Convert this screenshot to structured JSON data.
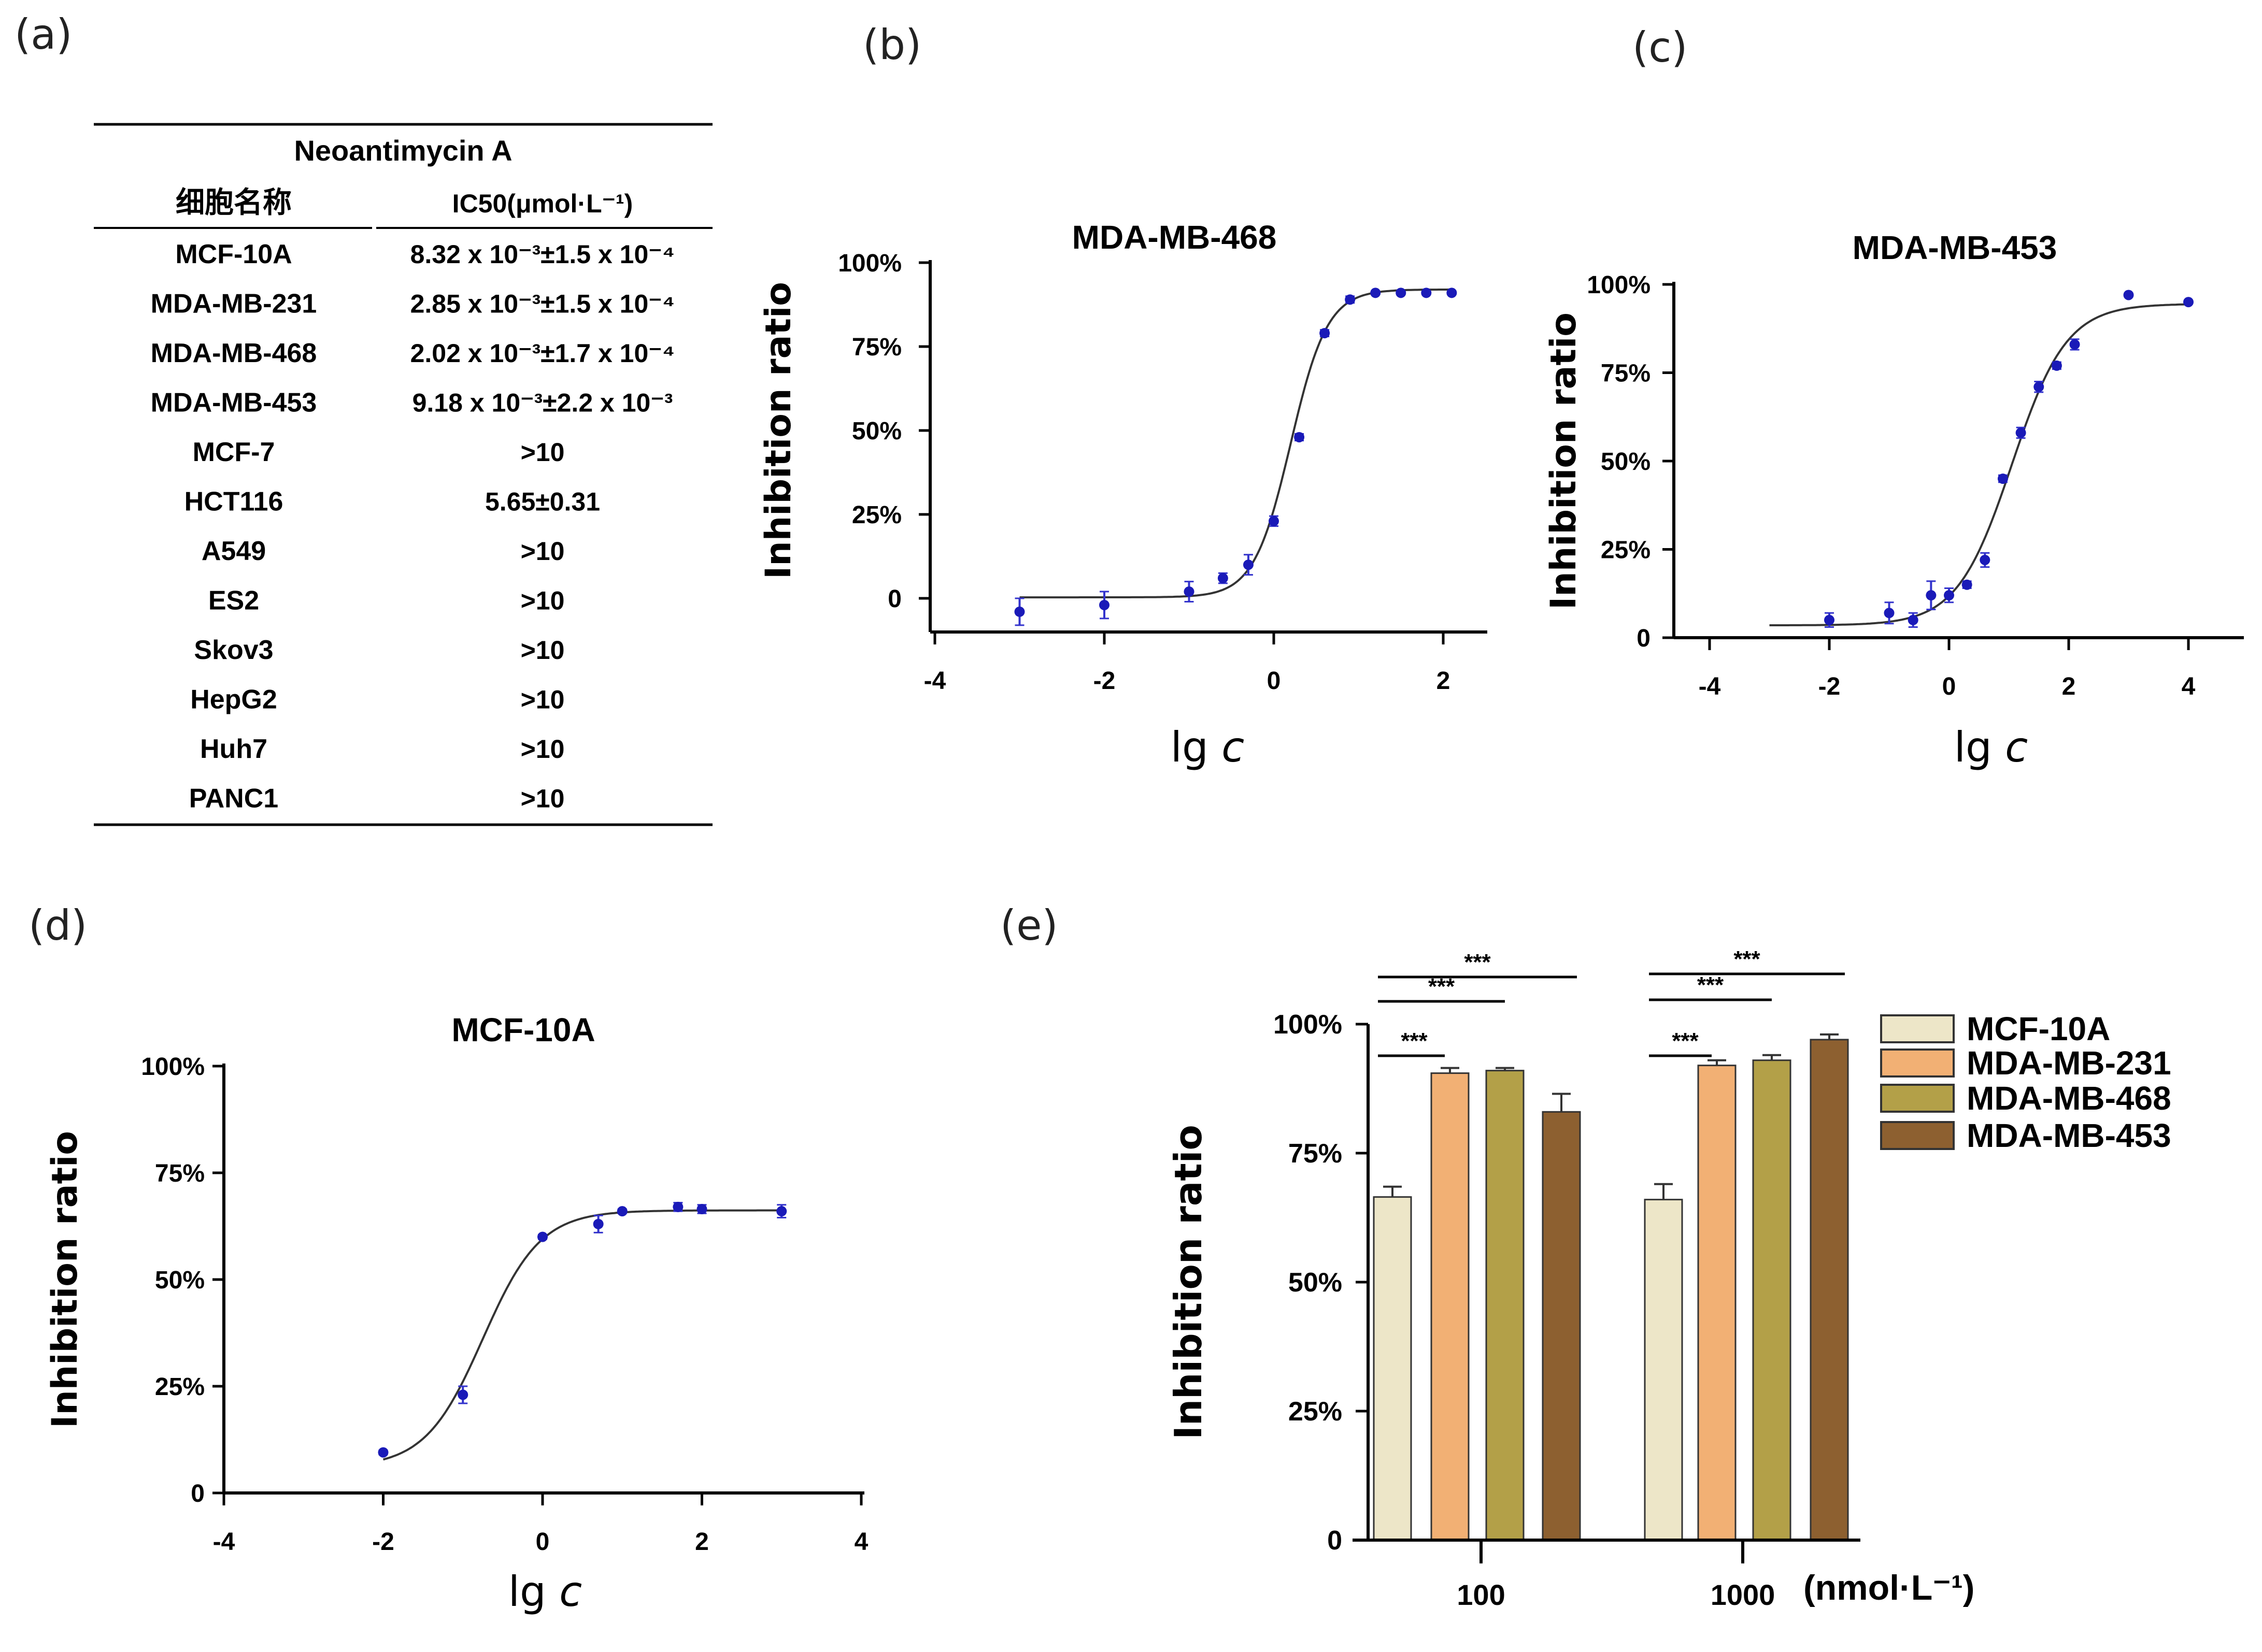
{
  "panels": {
    "a": {
      "label": "(a)"
    },
    "b": {
      "label": "(b)"
    },
    "c": {
      "label": "(c)"
    },
    "d": {
      "label": "(d)"
    },
    "e": {
      "label": "(e)"
    }
  },
  "table": {
    "title": "Neoantimycin A",
    "columns": [
      "细胞名称",
      "IC50(μmol·L⁻¹)"
    ],
    "rows": [
      {
        "cell": "MCF-10A",
        "ic50": "8.32 x 10⁻³±1.5 x 10⁻⁴"
      },
      {
        "cell": "MDA-MB-231",
        "ic50": "2.85 x 10⁻³±1.5 x 10⁻⁴"
      },
      {
        "cell": "MDA-MB-468",
        "ic50": "2.02 x 10⁻³±1.7 x 10⁻⁴"
      },
      {
        "cell": "MDA-MB-453",
        "ic50": "9.18 x 10⁻³±2.2 x 10⁻³"
      },
      {
        "cell": "MCF-7",
        "ic50": ">10"
      },
      {
        "cell": "HCT116",
        "ic50": "5.65±0.31"
      },
      {
        "cell": "A549",
        "ic50": ">10"
      },
      {
        "cell": "ES2",
        "ic50": ">10"
      },
      {
        "cell": "Skov3",
        "ic50": ">10"
      },
      {
        "cell": "HepG2",
        "ic50": ">10"
      },
      {
        "cell": "Huh7",
        "ic50": ">10"
      },
      {
        "cell": "PANC1",
        "ic50": ">10"
      }
    ]
  },
  "colors": {
    "point": "#1a1ab8",
    "curve": "#333333",
    "axis": "#000000"
  },
  "chart_data": [
    {
      "panel": "b",
      "type": "scatter",
      "title": "MDA-MB-468",
      "xlabel": "lg c",
      "ylabel": "Inhibition ratio",
      "xlim": [
        -4,
        2.5
      ],
      "ylim": [
        -10,
        100
      ],
      "xticks": [
        -4,
        -2,
        0,
        2
      ],
      "yticks": [
        0,
        25,
        50,
        75,
        100
      ],
      "ytick_labels": [
        "0",
        "25%",
        "50%",
        "75%",
        "100%"
      ],
      "points": [
        {
          "x": -3,
          "y": -4,
          "err": 4
        },
        {
          "x": -2,
          "y": -2,
          "err": 4
        },
        {
          "x": -1,
          "y": 2,
          "err": 3
        },
        {
          "x": -0.6,
          "y": 6,
          "err": 1.5
        },
        {
          "x": -0.3,
          "y": 10,
          "err": 3
        },
        {
          "x": 0,
          "y": 23,
          "err": 1.5
        },
        {
          "x": 0.3,
          "y": 48,
          "err": 1
        },
        {
          "x": 0.6,
          "y": 79,
          "err": 1
        },
        {
          "x": 0.9,
          "y": 89,
          "err": 1
        },
        {
          "x": 1.2,
          "y": 91,
          "err": 0.5
        },
        {
          "x": 1.5,
          "y": 91,
          "err": 0.5
        },
        {
          "x": 1.8,
          "y": 91,
          "err": 0.5
        },
        {
          "x": 2.1,
          "y": 91,
          "err": 0.5
        }
      ],
      "fit": {
        "bottom": 0.3,
        "top": 92,
        "logEC50": 0.2,
        "hill": 2.0,
        "xrange": [
          -3,
          2.1
        ]
      }
    },
    {
      "panel": "c",
      "type": "scatter",
      "title": "MDA-MB-453",
      "xlabel": "lg c",
      "ylabel": "Inhibition ratio",
      "xlim": [
        -4,
        5
      ],
      "ylim": [
        0,
        100
      ],
      "xticks": [
        -4,
        -2,
        0,
        2,
        4
      ],
      "yticks": [
        0,
        25,
        50,
        75,
        100
      ],
      "ytick_labels": [
        "0",
        "25%",
        "50%",
        "75%",
        "100%"
      ],
      "points": [
        {
          "x": -2,
          "y": 5,
          "err": 2
        },
        {
          "x": -1,
          "y": 7,
          "err": 3
        },
        {
          "x": -0.6,
          "y": 5,
          "err": 2
        },
        {
          "x": -0.3,
          "y": 12,
          "err": 4
        },
        {
          "x": 0,
          "y": 12,
          "err": 2
        },
        {
          "x": 0.3,
          "y": 15,
          "err": 1
        },
        {
          "x": 0.6,
          "y": 22,
          "err": 2
        },
        {
          "x": 0.9,
          "y": 45,
          "err": 1
        },
        {
          "x": 1.2,
          "y": 58,
          "err": 1.5
        },
        {
          "x": 1.5,
          "y": 71,
          "err": 1.5
        },
        {
          "x": 1.8,
          "y": 77,
          "err": 1
        },
        {
          "x": 2.1,
          "y": 83,
          "err": 1.5
        },
        {
          "x": 3,
          "y": 97,
          "err": 0.5
        },
        {
          "x": 4,
          "y": 95,
          "err": 0.5
        }
      ],
      "fit": {
        "bottom": 3.5,
        "top": 94.5,
        "logEC50": 1.05,
        "hill": 0.95,
        "xrange": [
          -3,
          4
        ]
      }
    },
    {
      "panel": "d",
      "type": "scatter",
      "title": "MCF-10A",
      "xlabel": "lg c",
      "ylabel": "Inhibition ratio",
      "xlim": [
        -4,
        4
      ],
      "ylim": [
        0,
        100
      ],
      "xticks": [
        -4,
        -2,
        0,
        2,
        4
      ],
      "yticks": [
        0,
        25,
        50,
        75,
        100
      ],
      "ytick_labels": [
        "0",
        "25%",
        "50%",
        "75%",
        "100%"
      ],
      "points": [
        {
          "x": -2,
          "y": 9.5,
          "err": 0.5
        },
        {
          "x": -1,
          "y": 23,
          "err": 2
        },
        {
          "x": 0,
          "y": 60,
          "err": 0.5
        },
        {
          "x": 0.7,
          "y": 63,
          "err": 2
        },
        {
          "x": 1,
          "y": 66,
          "err": 0.5
        },
        {
          "x": 1.7,
          "y": 67,
          "err": 1
        },
        {
          "x": 2,
          "y": 66.5,
          "err": 1
        },
        {
          "x": 3,
          "y": 66,
          "err": 1.5
        }
      ],
      "fit": {
        "bottom": 6,
        "top": 66.2,
        "logEC50": -0.75,
        "hill": 1.2,
        "xrange": [
          -2,
          3
        ]
      }
    },
    {
      "panel": "e",
      "type": "bar",
      "xlabel": "(nmol·L⁻¹)",
      "ylabel": "Inhibition ratio",
      "categories": [
        "100",
        "1000"
      ],
      "ylim": [
        0,
        100
      ],
      "yticks": [
        0,
        25,
        50,
        75,
        100
      ],
      "ytick_labels": [
        "0",
        "25%",
        "50%",
        "75%",
        "100%"
      ],
      "series": [
        {
          "name": "MCF-10A",
          "color": "#EDE6C8",
          "values": [
            66.5,
            66
          ],
          "errors": [
            2,
            3
          ]
        },
        {
          "name": "MDA-MB-231",
          "color": "#F2B074",
          "values": [
            90.5,
            92
          ],
          "errors": [
            1,
            1
          ]
        },
        {
          "name": "MDA-MB-468",
          "color": "#B3A048",
          "values": [
            91,
            93
          ],
          "errors": [
            0.5,
            1
          ]
        },
        {
          "name": "MDA-MB-453",
          "color": "#8D6030",
          "values": [
            83,
            97
          ],
          "errors": [
            3.5,
            1
          ]
        }
      ],
      "significance": [
        {
          "group": 0,
          "from": 0,
          "to": 1,
          "label": "***"
        },
        {
          "group": 0,
          "from": 0,
          "to": 2,
          "label": "***"
        },
        {
          "group": 0,
          "from": 0,
          "to": 3,
          "label": "***"
        },
        {
          "group": 1,
          "from": 0,
          "to": 1,
          "label": "***"
        },
        {
          "group": 1,
          "from": 0,
          "to": 2,
          "label": "***"
        },
        {
          "group": 1,
          "from": 0,
          "to": 3,
          "label": "***"
        }
      ],
      "legend": "right"
    }
  ]
}
